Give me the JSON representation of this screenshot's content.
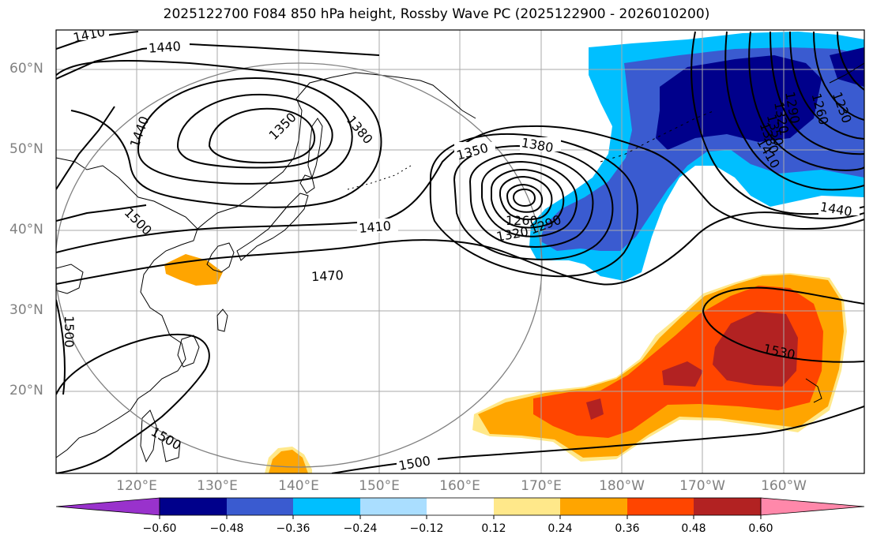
{
  "title": "2025122700 F084 850 hPa height, Rossby Wave PC (2025122900 - 2026010200)",
  "lat_labels": [
    "60°N",
    "50°N",
    "40°N",
    "30°N",
    "20°N"
  ],
  "lon_labels": [
    "120°E",
    "130°E",
    "140°E",
    "150°E",
    "160°E",
    "170°E",
    "180°W",
    "170°W",
    "160°W"
  ],
  "colorbar": {
    "ticks": [
      "−0.60",
      "−0.48",
      "−0.36",
      "−0.24",
      "−0.12",
      "0.12",
      "0.24",
      "0.36",
      "0.48",
      "0.60"
    ],
    "colors": [
      "#9932cc",
      "#00008b",
      "#3a5bd0",
      "#00bfff",
      "#aadeff",
      "#ffffff",
      "#ffe88a",
      "#ffa500",
      "#ff4500",
      "#b22222",
      "#ff88aa"
    ]
  },
  "contour_labels": [
    "1410",
    "1440",
    "1350",
    "1380",
    "1440",
    "1350",
    "1380",
    "1410",
    "1260",
    "1290",
    "1320",
    "1470",
    "1500",
    "1500",
    "1500",
    "1500",
    "1530",
    "1440",
    "1230",
    "1260",
    "1290",
    "1320",
    "1350",
    "1380",
    "1410"
  ]
}
